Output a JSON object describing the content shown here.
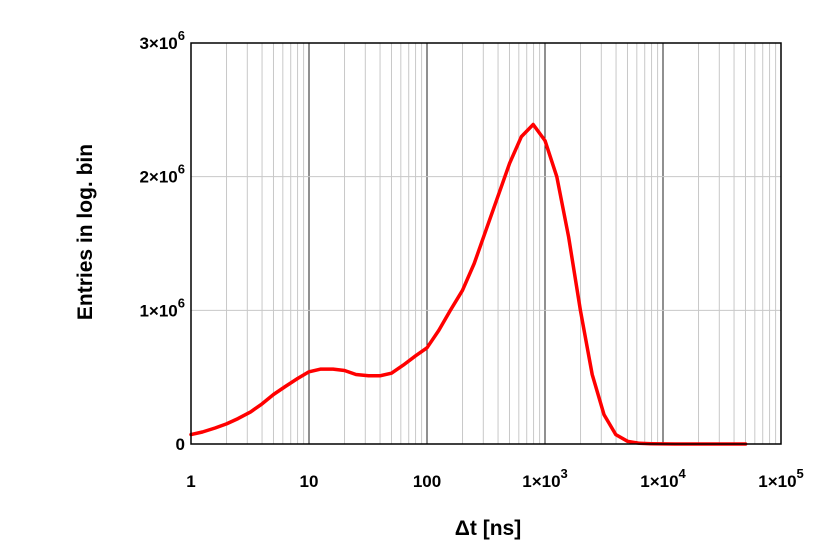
{
  "chart_data": {
    "type": "line",
    "title": "",
    "xlabel": "Δt [ns]",
    "ylabel": "Entries in log. bin",
    "xscale": "log",
    "xlim": [
      1,
      100000
    ],
    "ylim": [
      0,
      3000000
    ],
    "grid": true,
    "legend": "none",
    "line_color": "#ff0000",
    "x_ticks": [
      {
        "value": 1,
        "label": "1"
      },
      {
        "value": 10,
        "label": "10"
      },
      {
        "value": 100,
        "label": "100"
      },
      {
        "value": 1000,
        "label": "1×10",
        "exp": "3"
      },
      {
        "value": 10000,
        "label": "1×10",
        "exp": "4"
      },
      {
        "value": 100000,
        "label": "1×10",
        "exp": "5"
      }
    ],
    "y_ticks": [
      {
        "value": 0,
        "label": "0"
      },
      {
        "value": 1000000,
        "label": "1×10",
        "exp": "6"
      },
      {
        "value": 2000000,
        "label": "2×10",
        "exp": "6"
      },
      {
        "value": 3000000,
        "label": "3×10",
        "exp": "6"
      }
    ],
    "series": [
      {
        "x": [
          1,
          1.25,
          1.6,
          2,
          2.5,
          3.2,
          4,
          5,
          6.3,
          8,
          10,
          12.6,
          16,
          20,
          25,
          32,
          40,
          50,
          63,
          80,
          100,
          126,
          158,
          200,
          251,
          316,
          398,
          501,
          631,
          794,
          1000,
          1259,
          1585,
          1995,
          2512,
          3162,
          3981,
          5012,
          6310,
          7943,
          10000,
          12589,
          15849,
          19953,
          25119,
          31623,
          39811,
          50119
        ],
        "y": [
          70000,
          90000,
          120000,
          150000,
          190000,
          240000,
          300000,
          370000,
          430000,
          490000,
          540000,
          560000,
          560000,
          550000,
          520000,
          510000,
          510000,
          530000,
          590000,
          660000,
          720000,
          850000,
          1000000,
          1150000,
          1350000,
          1600000,
          1850000,
          2100000,
          2300000,
          2390000,
          2270000,
          2000000,
          1550000,
          1000000,
          520000,
          220000,
          70000,
          20000,
          5000,
          2000,
          1000,
          0,
          0,
          0,
          0,
          0,
          0,
          0
        ]
      }
    ]
  }
}
